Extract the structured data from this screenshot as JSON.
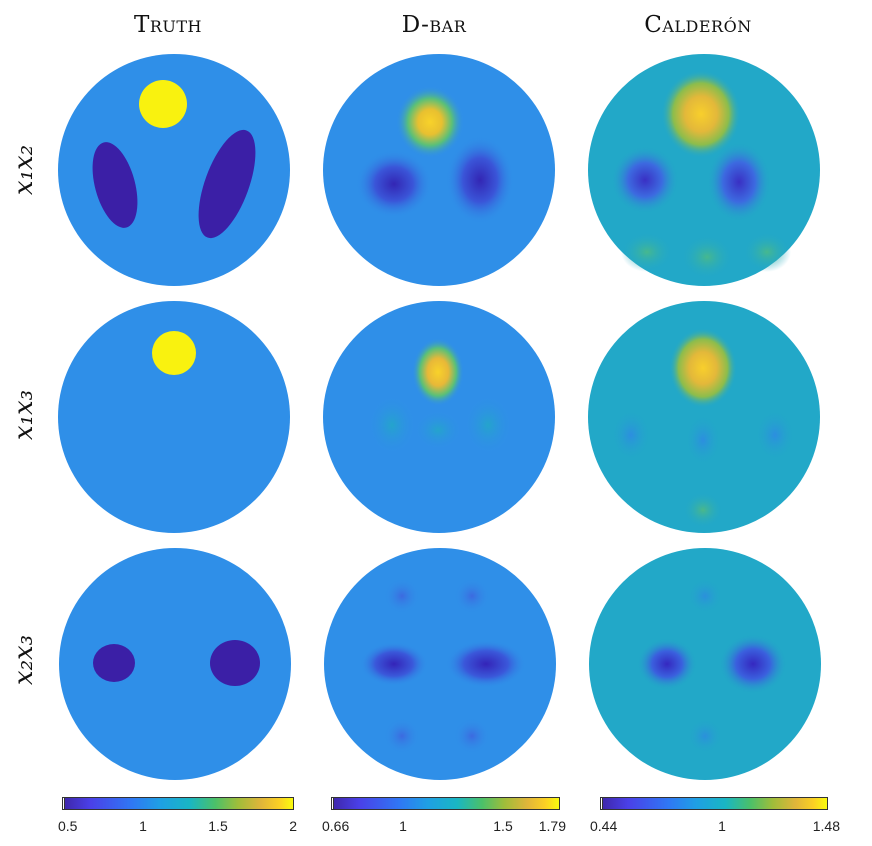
{
  "columns": {
    "truth": "Truth",
    "dbar": "D-bar",
    "calderon": "Calderón"
  },
  "rows": {
    "r1": "x₁x₂",
    "r2": "x₁x₃",
    "r3": "x₂x₃"
  },
  "colorbars": {
    "truth": {
      "min": "0.5",
      "t1": "1",
      "t2": "1.5",
      "max": "2"
    },
    "dbar": {
      "min": "0.66",
      "t1": "1",
      "t2": "1.5",
      "max": "1.79"
    },
    "calderon": {
      "min": "0.44",
      "t1": "1",
      "max": "1.48"
    }
  },
  "colors": {
    "background_blue": "#2f8fe8",
    "calderon_background": "#22a8c8",
    "inclusion_yellow": "#f9f20f",
    "inclusion_dark": "#3b1fa6"
  }
}
